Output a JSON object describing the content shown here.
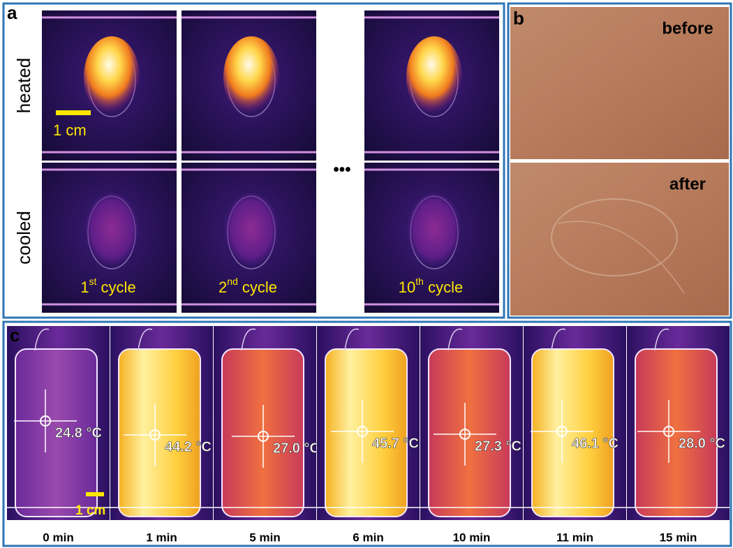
{
  "panel_a": {
    "label": "a",
    "row_labels": [
      "heated",
      "cooled"
    ],
    "scale_bar": "1 cm",
    "ellipsis": "•••",
    "cycles": [
      {
        "number": "1",
        "suffix": "st",
        "text": " cycle"
      },
      {
        "number": "2",
        "suffix": "nd",
        "text": " cycle"
      },
      {
        "number": "10",
        "suffix": "th",
        "text": " cycle"
      }
    ]
  },
  "panel_b": {
    "label": "b",
    "images": [
      "before",
      "after"
    ]
  },
  "panel_c": {
    "label": "c",
    "scale_bar": "1 cm",
    "frames": [
      {
        "temperature": "24.8 °C",
        "time": "0 min"
      },
      {
        "temperature": "44.2 °C",
        "time": "1 min"
      },
      {
        "temperature": "27.0 °C",
        "time": "5 min"
      },
      {
        "temperature": "45.7 °C",
        "time": "6 min"
      },
      {
        "temperature": "27.3 °C",
        "time": "10 min"
      },
      {
        "temperature": "46.1 °C",
        "time": "11 min"
      },
      {
        "temperature": "28.0 °C",
        "time": "15 min"
      }
    ]
  }
}
